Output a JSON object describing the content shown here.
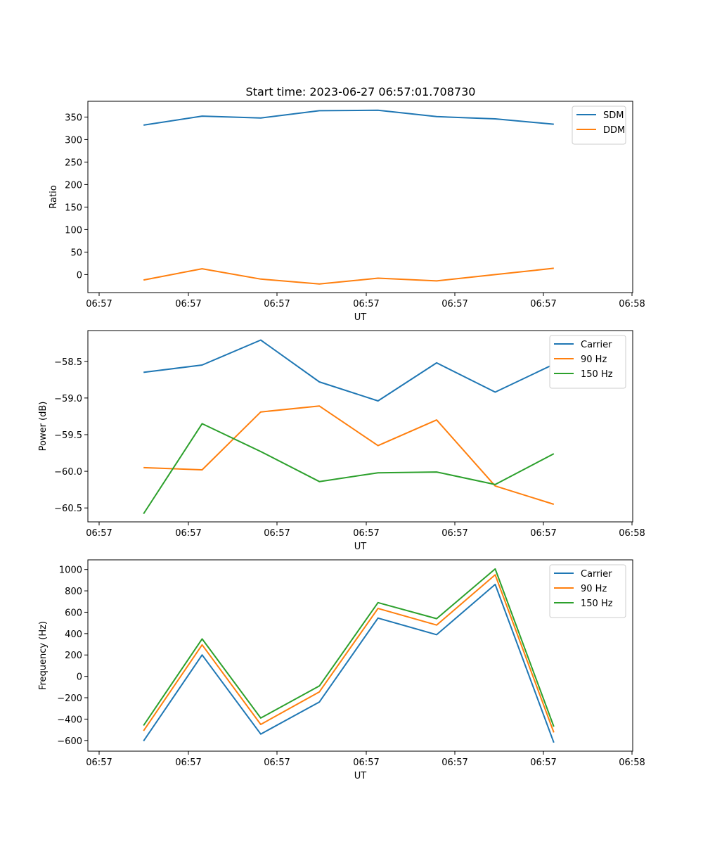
{
  "chart_data": [
    {
      "type": "line",
      "title": "Start time: 2023-06-27 06:57:01.708730",
      "xlabel": "UT",
      "ylabel": "Ratio",
      "xticks": [
        "06:57",
        "06:57",
        "06:57",
        "06:57",
        "06:57",
        "06:57",
        "06:58"
      ],
      "yticks": [
        0,
        50,
        100,
        150,
        200,
        250,
        300,
        350
      ],
      "ylim": [
        -40,
        385
      ],
      "legend_position": "upper right",
      "series": [
        {
          "name": "SDM",
          "color": "#1f77b4",
          "x": [
            0.5,
            1.16,
            1.82,
            2.48,
            3.14,
            3.8,
            4.46,
            5.12
          ],
          "y": [
            332,
            352,
            348,
            364,
            365,
            351,
            346,
            334
          ]
        },
        {
          "name": "DDM",
          "color": "#ff7f0e",
          "x": [
            0.5,
            1.16,
            1.82,
            2.48,
            3.14,
            3.8,
            4.46,
            5.12
          ],
          "y": [
            -12,
            13,
            -10,
            -21,
            -8,
            -14,
            0,
            14
          ]
        }
      ]
    },
    {
      "type": "line",
      "title": "",
      "xlabel": "UT",
      "ylabel": "Power (dB)",
      "xticks": [
        "06:57",
        "06:57",
        "06:57",
        "06:57",
        "06:57",
        "06:57",
        "06:58"
      ],
      "yticks": [
        -60.5,
        -60.0,
        -59.5,
        -59.0,
        -58.5
      ],
      "ytick_labels": [
        "−60.5",
        "−60.0",
        "−59.5",
        "−59.0",
        "−58.5"
      ],
      "ylim": [
        -60.69,
        -58.08
      ],
      "legend_position": "upper right",
      "series": [
        {
          "name": "Carrier",
          "color": "#1f77b4",
          "x": [
            0.5,
            1.16,
            1.82,
            2.48,
            3.14,
            3.8,
            4.46,
            5.12
          ],
          "y": [
            -58.65,
            -58.55,
            -58.21,
            -58.78,
            -59.04,
            -58.52,
            -58.92,
            -58.54
          ]
        },
        {
          "name": "90 Hz",
          "color": "#ff7f0e",
          "x": [
            0.5,
            1.16,
            1.82,
            2.48,
            3.14,
            3.8,
            4.46,
            5.12
          ],
          "y": [
            -59.95,
            -59.98,
            -59.19,
            -59.11,
            -59.65,
            -59.3,
            -60.2,
            -60.45
          ]
        },
        {
          "name": "150 Hz",
          "color": "#2ca02c",
          "x": [
            0.5,
            1.16,
            1.82,
            2.48,
            3.14,
            3.8,
            4.46,
            5.12
          ],
          "y": [
            -60.58,
            -59.35,
            -59.73,
            -60.14,
            -60.02,
            -60.01,
            -60.18,
            -59.76
          ]
        }
      ]
    },
    {
      "type": "line",
      "title": "",
      "xlabel": "UT",
      "ylabel": "Frequency (Hz)",
      "xticks": [
        "06:57",
        "06:57",
        "06:57",
        "06:57",
        "06:57",
        "06:57",
        "06:58"
      ],
      "yticks": [
        -600,
        -400,
        -200,
        0,
        200,
        400,
        600,
        800,
        1000
      ],
      "ytick_labels": [
        "−600",
        "−400",
        "−200",
        "0",
        "200",
        "400",
        "600",
        "800",
        "1000"
      ],
      "ylim": [
        -700,
        1090
      ],
      "legend_position": "upper right",
      "series": [
        {
          "name": "Carrier",
          "color": "#1f77b4",
          "x": [
            0.5,
            1.16,
            1.82,
            2.48,
            3.14,
            3.8,
            4.46,
            5.12
          ],
          "y": [
            -605,
            200,
            -540,
            -240,
            545,
            390,
            860,
            -620
          ]
        },
        {
          "name": "90 Hz",
          "color": "#ff7f0e",
          "x": [
            0.5,
            1.16,
            1.82,
            2.48,
            3.14,
            3.8,
            4.46,
            5.12
          ],
          "y": [
            -510,
            295,
            -450,
            -145,
            635,
            480,
            950,
            -525
          ]
        },
        {
          "name": "150 Hz",
          "color": "#2ca02c",
          "x": [
            0.5,
            1.16,
            1.82,
            2.48,
            3.14,
            3.8,
            4.46,
            5.12
          ],
          "y": [
            -460,
            350,
            -390,
            -90,
            690,
            540,
            1005,
            -470
          ]
        }
      ]
    }
  ]
}
